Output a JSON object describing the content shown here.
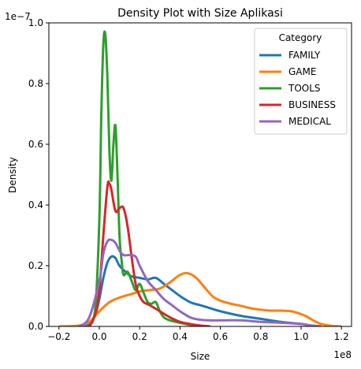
{
  "chart_data": {
    "type": "line",
    "title": "Density Plot with Size Aplikasi",
    "xlabel": "Size",
    "ylabel": "Density",
    "x_offset_label": "1e8",
    "y_offset_label": "1e−7",
    "xlim": [
      -0.25,
      1.25
    ],
    "ylim": [
      0,
      1.0
    ],
    "xticks": [
      -0.2,
      0.0,
      0.2,
      0.4,
      0.6,
      0.8,
      1.0,
      1.2
    ],
    "xtick_labels": [
      "−0.2",
      "0.0",
      "0.2",
      "0.4",
      "0.6",
      "0.8",
      "1.0",
      "1.2"
    ],
    "yticks": [
      0.0,
      0.2,
      0.4,
      0.6,
      0.8,
      1.0
    ],
    "ytick_labels": [
      "0.0",
      "0.2",
      "0.4",
      "0.6",
      "0.8",
      "1.0"
    ],
    "grid": false,
    "legend": {
      "title": "Category",
      "placement": "top-right"
    },
    "series": [
      {
        "name": "FAMILY",
        "color": "#1f77b4",
        "x": [
          -0.1,
          -0.05,
          -0.02,
          0.0,
          0.02,
          0.04,
          0.06,
          0.08,
          0.1,
          0.13,
          0.16,
          0.2,
          0.24,
          0.28,
          0.32,
          0.36,
          0.4,
          0.45,
          0.5,
          0.55,
          0.6,
          0.7,
          0.8,
          0.9,
          1.0,
          1.05,
          1.1
        ],
        "y": [
          0.0,
          0.008,
          0.04,
          0.09,
          0.16,
          0.21,
          0.23,
          0.225,
          0.2,
          0.18,
          0.165,
          0.16,
          0.155,
          0.16,
          0.14,
          0.12,
          0.1,
          0.08,
          0.07,
          0.06,
          0.05,
          0.035,
          0.025,
          0.015,
          0.008,
          0.003,
          0.0
        ]
      },
      {
        "name": "GAME",
        "color": "#ff7f0e",
        "x": [
          -0.2,
          -0.1,
          -0.05,
          0.0,
          0.05,
          0.1,
          0.15,
          0.2,
          0.25,
          0.3,
          0.35,
          0.4,
          0.44,
          0.48,
          0.52,
          0.56,
          0.6,
          0.65,
          0.7,
          0.75,
          0.8,
          0.85,
          0.9,
          0.95,
          0.98,
          1.02,
          1.06,
          1.1,
          1.15,
          1.2
        ],
        "y": [
          0.0,
          0.003,
          0.015,
          0.05,
          0.08,
          0.095,
          0.105,
          0.115,
          0.12,
          0.125,
          0.145,
          0.17,
          0.175,
          0.16,
          0.13,
          0.1,
          0.085,
          0.075,
          0.068,
          0.06,
          0.055,
          0.052,
          0.052,
          0.05,
          0.045,
          0.035,
          0.02,
          0.008,
          0.002,
          0.0
        ]
      },
      {
        "name": "TOOLS",
        "color": "#2ca02c",
        "x": [
          -0.05,
          -0.02,
          0.0,
          0.01,
          0.02,
          0.03,
          0.04,
          0.05,
          0.06,
          0.07,
          0.08,
          0.09,
          0.1,
          0.11,
          0.12,
          0.14,
          0.16,
          0.18,
          0.2,
          0.22,
          0.24,
          0.26,
          0.28,
          0.3,
          0.32,
          0.35,
          0.4,
          0.45,
          0.5
        ],
        "y": [
          0.0,
          0.06,
          0.35,
          0.7,
          0.93,
          0.96,
          0.82,
          0.58,
          0.48,
          0.6,
          0.66,
          0.5,
          0.3,
          0.22,
          0.17,
          0.18,
          0.15,
          0.12,
          0.14,
          0.11,
          0.08,
          0.075,
          0.08,
          0.05,
          0.03,
          0.02,
          0.012,
          0.005,
          0.0
        ]
      },
      {
        "name": "BUSINESS",
        "color": "#d62728",
        "x": [
          -0.05,
          -0.02,
          0.0,
          0.02,
          0.04,
          0.05,
          0.06,
          0.08,
          0.1,
          0.12,
          0.14,
          0.16,
          0.18,
          0.2,
          0.22,
          0.25,
          0.3,
          0.35,
          0.4,
          0.45,
          0.5,
          0.55
        ],
        "y": [
          0.0,
          0.04,
          0.12,
          0.3,
          0.46,
          0.47,
          0.45,
          0.38,
          0.39,
          0.39,
          0.33,
          0.23,
          0.14,
          0.1,
          0.08,
          0.07,
          0.05,
          0.03,
          0.015,
          0.008,
          0.003,
          0.0
        ]
      },
      {
        "name": "MEDICAL",
        "color": "#9467bd",
        "x": [
          -0.1,
          -0.05,
          0.0,
          0.02,
          0.04,
          0.06,
          0.08,
          0.1,
          0.12,
          0.15,
          0.18,
          0.2,
          0.24,
          0.28,
          0.32,
          0.36,
          0.4,
          0.45,
          0.5,
          0.55,
          0.6,
          0.7,
          0.8,
          0.9,
          1.0,
          1.05,
          1.1
        ],
        "y": [
          0.0,
          0.03,
          0.15,
          0.24,
          0.28,
          0.285,
          0.275,
          0.25,
          0.235,
          0.235,
          0.23,
          0.2,
          0.15,
          0.12,
          0.09,
          0.07,
          0.05,
          0.03,
          0.022,
          0.02,
          0.02,
          0.02,
          0.015,
          0.012,
          0.008,
          0.003,
          0.0
        ]
      }
    ]
  }
}
